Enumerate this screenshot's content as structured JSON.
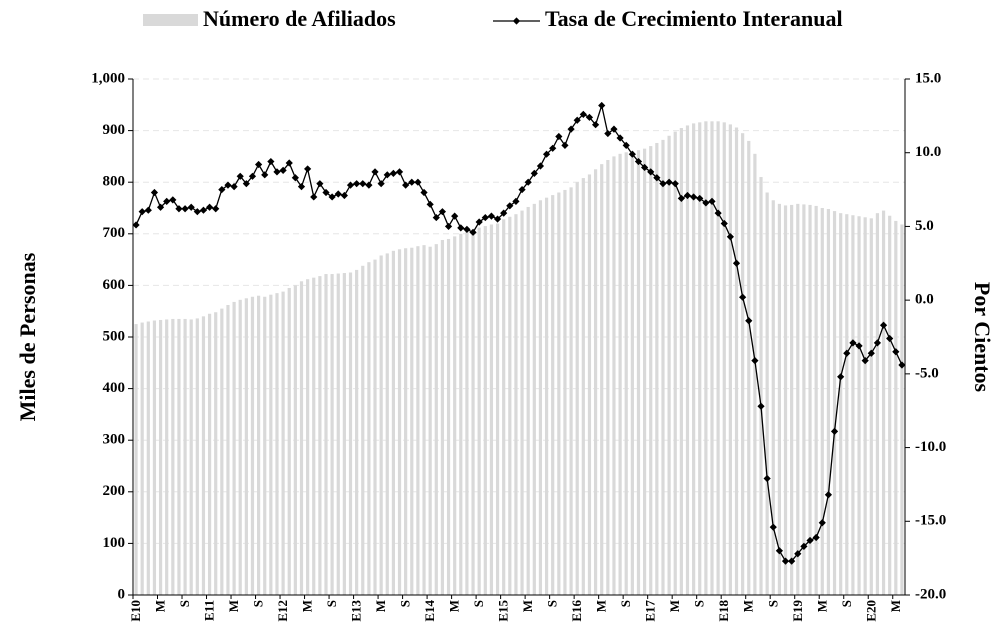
{
  "chart_data": {
    "type": "bar_line",
    "y_label": "Miles de Personas",
    "y2_label": "Por Cientos",
    "categories": [
      "E10",
      null,
      null,
      null,
      "M",
      null,
      null,
      null,
      "S",
      null,
      null,
      null,
      "E11",
      null,
      null,
      null,
      "M",
      null,
      null,
      null,
      "S",
      null,
      null,
      null,
      "E12",
      null,
      null,
      null,
      "M",
      null,
      null,
      null,
      "S",
      null,
      null,
      null,
      "E13",
      null,
      null,
      null,
      "M",
      null,
      null,
      null,
      "S",
      null,
      null,
      null,
      "E14",
      null,
      null,
      null,
      "M",
      null,
      null,
      null,
      "S",
      null,
      null,
      null,
      "E15",
      null,
      null,
      null,
      "M",
      null,
      null,
      null,
      "S",
      null,
      null,
      null,
      "E16",
      null,
      null,
      null,
      "M",
      null,
      null,
      null,
      "S",
      null,
      null,
      null,
      "E17",
      null,
      null,
      null,
      "M",
      null,
      null,
      null,
      "S",
      null,
      null,
      null,
      "E18",
      null,
      null,
      null,
      "M",
      null,
      null,
      null,
      "S",
      null,
      null,
      null,
      "E19",
      null,
      null,
      null,
      "M",
      null,
      null,
      null,
      "S",
      null,
      null,
      null,
      "E20",
      null,
      null,
      null,
      "M",
      null
    ],
    "series": [
      {
        "name": "Número de Afiliados",
        "type": "bar",
        "axis": "y",
        "color": "#d9d9d9",
        "values": [
          525,
          528,
          530,
          532,
          533,
          534,
          535,
          535,
          535,
          534,
          536,
          540,
          545,
          548,
          555,
          562,
          568,
          572,
          575,
          578,
          580,
          578,
          582,
          585,
          588,
          595,
          600,
          608,
          612,
          615,
          618,
          622,
          622,
          623,
          624,
          625,
          630,
          638,
          645,
          650,
          658,
          662,
          667,
          670,
          672,
          673,
          676,
          678,
          675,
          680,
          688,
          690,
          695,
          700,
          705,
          708,
          712,
          715,
          718,
          720,
          728,
          733,
          738,
          745,
          752,
          758,
          765,
          770,
          775,
          780,
          785,
          790,
          800,
          808,
          815,
          825,
          835,
          843,
          850,
          855,
          858,
          860,
          862,
          865,
          870,
          876,
          882,
          890,
          898,
          905,
          910,
          914,
          916,
          918,
          918,
          918,
          916,
          912,
          906,
          895,
          880,
          855,
          810,
          780,
          765,
          758,
          755,
          756,
          758,
          757,
          756,
          754,
          750,
          748,
          744,
          740,
          738,
          736,
          734,
          732,
          730,
          740,
          745,
          735,
          725,
          718
        ]
      },
      {
        "name": "Tasa de Crecimiento Interanual",
        "type": "line",
        "axis": "y2",
        "color": "#000000",
        "values": [
          5.1,
          6.0,
          6.1,
          7.3,
          6.3,
          6.7,
          6.8,
          6.2,
          6.2,
          6.3,
          6.0,
          6.1,
          6.3,
          6.2,
          7.5,
          7.8,
          7.7,
          8.4,
          7.9,
          8.4,
          9.2,
          8.5,
          9.4,
          8.7,
          8.8,
          9.3,
          8.3,
          7.7,
          8.9,
          7.0,
          7.9,
          7.3,
          7.0,
          7.2,
          7.1,
          7.8,
          7.9,
          7.9,
          7.8,
          8.7,
          7.9,
          8.5,
          8.6,
          8.7,
          7.8,
          8.0,
          8.0,
          7.3,
          6.5,
          5.6,
          6.0,
          5.0,
          5.7,
          4.9,
          4.8,
          4.6,
          5.3,
          5.6,
          5.7,
          5.5,
          5.9,
          6.4,
          6.7,
          7.5,
          8.0,
          8.6,
          9.1,
          9.9,
          10.3,
          11.1,
          10.5,
          11.6,
          12.2,
          12.6,
          12.4,
          11.9,
          13.2,
          11.3,
          11.6,
          11.0,
          10.5,
          9.9,
          9.4,
          9.0,
          8.7,
          8.3,
          7.9,
          8.0,
          7.9,
          6.9,
          7.1,
          7.0,
          6.9,
          6.6,
          6.7,
          5.9,
          5.2,
          4.3,
          2.5,
          0.2,
          -1.4,
          -4.1,
          -7.2,
          -12.1,
          -15.4,
          -17.0,
          -17.7,
          -17.7,
          -17.2,
          -16.7,
          -16.3,
          -16.1,
          -15.1,
          -13.2,
          -8.9,
          -5.2,
          -3.6,
          -2.9,
          -3.1,
          -4.1,
          -3.6,
          -2.9,
          -1.7,
          -2.6,
          -3.5,
          -4.4
        ]
      }
    ],
    "ylim": [
      0,
      1000
    ],
    "yticks": [
      0,
      100,
      200,
      300,
      400,
      500,
      600,
      700,
      800,
      900,
      {
        "value": 1000,
        "label": "1,000"
      }
    ],
    "y2lim": [
      -20,
      15
    ],
    "y2ticks": [
      {
        "value": -20,
        "label": "-20.0"
      },
      {
        "value": -15,
        "label": "-15.0"
      },
      {
        "value": -10,
        "label": "-10.0"
      },
      {
        "value": -5,
        "label": "-5.0"
      },
      {
        "value": 0,
        "label": "0.0"
      },
      {
        "value": 5,
        "label": "5.0"
      },
      {
        "value": 10,
        "label": "10.0"
      },
      {
        "value": 15,
        "label": "15.0"
      }
    ],
    "grid": true,
    "legend": "top"
  }
}
